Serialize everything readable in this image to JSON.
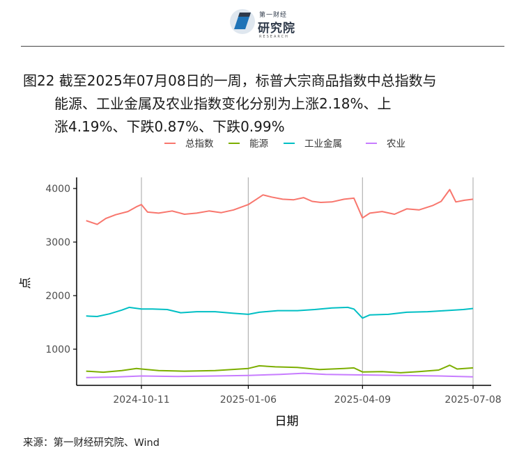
{
  "header": {
    "logo_tag": "第一财经",
    "logo_name": "研究院",
    "logo_en": "RESEARCH"
  },
  "figure": {
    "title_line1": "图22  截至2025年07月08日的一周，标普大宗商品指数中总指数与",
    "title_line2": "能源、工业金属及农业指数变化分别为上涨2.18%、上",
    "title_line3": "涨4.19%、下跌0.87%、下跌0.99%"
  },
  "source": "来源：第一财经研究院、Wind",
  "chart_data": {
    "type": "line",
    "xlabel": "日期",
    "ylabel": "点",
    "x_range": [
      "2024-08-27",
      "2025-07-08"
    ],
    "x_ticks": [
      "2024-10-11",
      "2025-01-06",
      "2025-04-09",
      "2025-07-08"
    ],
    "ylim": [
      300,
      4200
    ],
    "y_ticks": [
      1000,
      2000,
      3000,
      4000
    ],
    "grid": "vertical lines at x ticks",
    "legend_position": "top",
    "series": [
      {
        "name": "总指数",
        "color": "#f8766d",
        "points": [
          [
            "2024-08-27",
            3400
          ],
          [
            "2024-09-05",
            3330
          ],
          [
            "2024-09-12",
            3440
          ],
          [
            "2024-09-20",
            3510
          ],
          [
            "2024-09-30",
            3570
          ],
          [
            "2024-10-07",
            3660
          ],
          [
            "2024-10-11",
            3700
          ],
          [
            "2024-10-16",
            3560
          ],
          [
            "2024-10-25",
            3540
          ],
          [
            "2024-11-05",
            3580
          ],
          [
            "2024-11-15",
            3520
          ],
          [
            "2024-11-25",
            3540
          ],
          [
            "2024-12-05",
            3580
          ],
          [
            "2024-12-15",
            3550
          ],
          [
            "2024-12-25",
            3600
          ],
          [
            "2025-01-06",
            3700
          ],
          [
            "2025-01-12",
            3790
          ],
          [
            "2025-01-18",
            3880
          ],
          [
            "2025-01-25",
            3840
          ],
          [
            "2025-02-03",
            3800
          ],
          [
            "2025-02-12",
            3790
          ],
          [
            "2025-02-20",
            3830
          ],
          [
            "2025-02-27",
            3760
          ],
          [
            "2025-03-06",
            3740
          ],
          [
            "2025-03-15",
            3750
          ],
          [
            "2025-03-25",
            3800
          ],
          [
            "2025-04-02",
            3820
          ],
          [
            "2025-04-09",
            3450
          ],
          [
            "2025-04-15",
            3540
          ],
          [
            "2025-04-25",
            3570
          ],
          [
            "2025-05-05",
            3520
          ],
          [
            "2025-05-15",
            3620
          ],
          [
            "2025-05-25",
            3600
          ],
          [
            "2025-06-05",
            3680
          ],
          [
            "2025-06-12",
            3760
          ],
          [
            "2025-06-19",
            3980
          ],
          [
            "2025-06-24",
            3750
          ],
          [
            "2025-07-01",
            3780
          ],
          [
            "2025-07-08",
            3800
          ]
        ]
      },
      {
        "name": "能源",
        "color": "#7cae00",
        "points": [
          [
            "2024-08-27",
            590
          ],
          [
            "2024-09-10",
            570
          ],
          [
            "2024-09-25",
            600
          ],
          [
            "2024-10-07",
            640
          ],
          [
            "2024-10-11",
            630
          ],
          [
            "2024-10-25",
            600
          ],
          [
            "2024-11-15",
            590
          ],
          [
            "2024-12-10",
            600
          ],
          [
            "2025-01-06",
            640
          ],
          [
            "2025-01-15",
            690
          ],
          [
            "2025-01-28",
            670
          ],
          [
            "2025-02-15",
            660
          ],
          [
            "2025-03-05",
            620
          ],
          [
            "2025-03-25",
            640
          ],
          [
            "2025-04-02",
            650
          ],
          [
            "2025-04-09",
            575
          ],
          [
            "2025-04-25",
            580
          ],
          [
            "2025-05-10",
            560
          ],
          [
            "2025-05-25",
            580
          ],
          [
            "2025-06-10",
            610
          ],
          [
            "2025-06-19",
            700
          ],
          [
            "2025-06-25",
            630
          ],
          [
            "2025-07-08",
            650
          ]
        ]
      },
      {
        "name": "工业金属",
        "color": "#00bfc4",
        "points": [
          [
            "2024-08-27",
            1620
          ],
          [
            "2024-09-05",
            1610
          ],
          [
            "2024-09-15",
            1660
          ],
          [
            "2024-09-25",
            1730
          ],
          [
            "2024-10-01",
            1780
          ],
          [
            "2024-10-11",
            1750
          ],
          [
            "2024-10-20",
            1750
          ],
          [
            "2024-11-01",
            1740
          ],
          [
            "2024-11-12",
            1680
          ],
          [
            "2024-11-25",
            1700
          ],
          [
            "2024-12-10",
            1700
          ],
          [
            "2024-12-25",
            1670
          ],
          [
            "2025-01-06",
            1650
          ],
          [
            "2025-01-15",
            1690
          ],
          [
            "2025-01-30",
            1720
          ],
          [
            "2025-02-15",
            1720
          ],
          [
            "2025-03-01",
            1740
          ],
          [
            "2025-03-15",
            1770
          ],
          [
            "2025-03-28",
            1780
          ],
          [
            "2025-04-02",
            1750
          ],
          [
            "2025-04-09",
            1580
          ],
          [
            "2025-04-15",
            1640
          ],
          [
            "2025-04-30",
            1650
          ],
          [
            "2025-05-15",
            1690
          ],
          [
            "2025-06-01",
            1700
          ],
          [
            "2025-06-15",
            1720
          ],
          [
            "2025-06-30",
            1740
          ],
          [
            "2025-07-08",
            1760
          ]
        ]
      },
      {
        "name": "农业",
        "color": "#c77cff",
        "points": [
          [
            "2024-08-27",
            470
          ],
          [
            "2024-09-20",
            480
          ],
          [
            "2024-10-11",
            500
          ],
          [
            "2024-11-10",
            490
          ],
          [
            "2024-12-10",
            500
          ],
          [
            "2025-01-06",
            510
          ],
          [
            "2025-02-01",
            530
          ],
          [
            "2025-02-20",
            550
          ],
          [
            "2025-03-10",
            530
          ],
          [
            "2025-04-09",
            520
          ],
          [
            "2025-05-10",
            510
          ],
          [
            "2025-06-10",
            500
          ],
          [
            "2025-07-08",
            485
          ]
        ]
      }
    ]
  }
}
